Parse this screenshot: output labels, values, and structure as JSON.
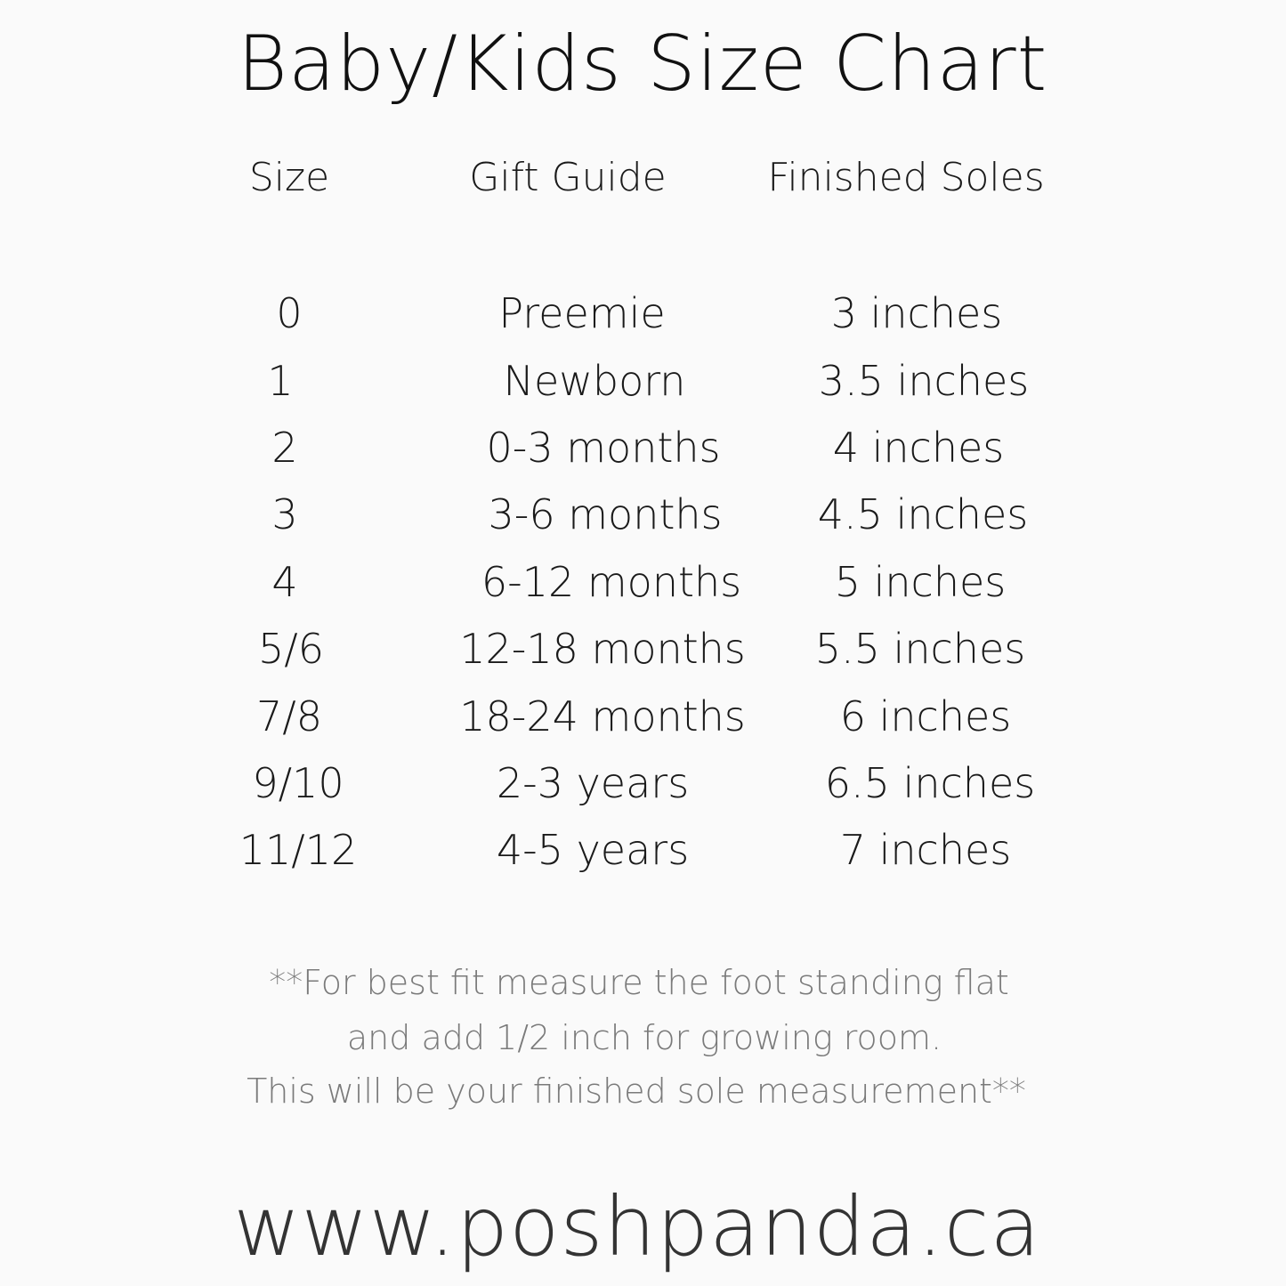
{
  "title": "Baby/Kids Size Chart",
  "headers": [
    "Size",
    "Gift Guide",
    "Finished Soles"
  ],
  "rows": [
    [
      "0",
      "Preemie",
      "3 inches"
    ],
    [
      "1",
      "Newborn",
      "3.5 inches"
    ],
    [
      "2",
      "0-3 months",
      "4 inches"
    ],
    [
      "3",
      "3-6 months",
      "4.5 inches"
    ],
    [
      "4",
      "6-12 months",
      "5 inches"
    ],
    [
      "5/6",
      "12-18 months",
      "5.5 inches"
    ],
    [
      "7/8",
      "18-24 months",
      "6 inches"
    ],
    [
      "9/10",
      "2-3 years",
      "6.5 inches"
    ],
    [
      "11/12",
      "4-5 years",
      "7 inches"
    ]
  ],
  "note": [
    "**For best fit measure the foot standing flat",
    "and add 1/2 inch for growing room.",
    "This will be your finished sole measurement**"
  ],
  "website": "www.poshpanda.ca"
}
